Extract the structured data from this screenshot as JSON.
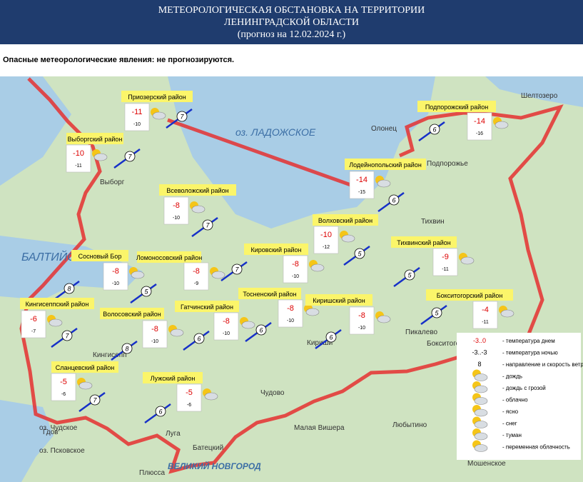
{
  "header": {
    "lines": [
      "МЕТЕОРОЛОГИЧЕСКАЯ ОБСТАНОВКА НА ТЕРРИТОРИИ",
      "ЛЕНИНГРАДСКОЙ ОБЛАСТИ",
      "(прогноз на 12.02.2024 г.)"
    ]
  },
  "notice": "Опасные метеорологические явления: не прогнозируются.",
  "districts": [
    {
      "name": "Приозерский район",
      "day": -11,
      "night": -10,
      "wind": 7
    },
    {
      "name": "Выборгский район",
      "day": -10,
      "night": -11,
      "wind": 7
    },
    {
      "name": "Всеволожский район",
      "day": -8,
      "night": -10,
      "wind": 7
    },
    {
      "name": "Сосновый Бор",
      "day": -8,
      "night": -10,
      "wind": 8
    },
    {
      "name": "Ломоносовский район",
      "day": -8,
      "night": -9,
      "wind": 5
    },
    {
      "name": "Кировский район",
      "day": -8,
      "night": -10,
      "wind": 7
    },
    {
      "name": "Кингисеппский район",
      "day": -6,
      "night": -7,
      "wind": 7
    },
    {
      "name": "Волосовский район",
      "day": -8,
      "night": -10,
      "wind": 8
    },
    {
      "name": "Гатчинский район",
      "day": -8,
      "night": -10,
      "wind": 6
    },
    {
      "name": "Тосненский район",
      "day": -8,
      "night": -10,
      "wind": 6
    },
    {
      "name": "Киришский район",
      "day": -8,
      "night": -10,
      "wind": 6
    },
    {
      "name": "Сланцевский район",
      "day": -5,
      "night": -6,
      "wind": 7
    },
    {
      "name": "Лужский район",
      "day": -5,
      "night": -6,
      "wind": 6
    },
    {
      "name": "Подпорожский район",
      "day": -14,
      "night": -16,
      "wind": 6
    },
    {
      "name": "Лодейнопольский район",
      "day": -14,
      "night": -15,
      "wind": 6
    },
    {
      "name": "Волховский район",
      "day": -10,
      "night": -12,
      "wind": 5
    },
    {
      "name": "Тихвинский район",
      "day": -9,
      "night": -11,
      "wind": 5
    },
    {
      "name": "Бокситогорский район",
      "day": -4,
      "night": -11,
      "wind": 5
    }
  ],
  "legend": [
    {
      "sample": "-3..0",
      "label": "- температура днем"
    },
    {
      "sample": "-3..-3",
      "label": "- температура ночью"
    },
    {
      "sample": "8",
      "label": "- направление и скорость ветра"
    },
    {
      "label": "- дождь"
    },
    {
      "label": "- дождь с грозой"
    },
    {
      "label": "- облачно"
    },
    {
      "label": "- ясно"
    },
    {
      "label": "- снег"
    },
    {
      "label": "- туман"
    },
    {
      "label": "- переменная облачность"
    }
  ],
  "map_labels": [
    "оз. ЛАДОЖСКОЕ",
    "БАЛТИЙСКОЕ",
    "оз. Чудское",
    "оз. Псковское",
    "Выборг",
    "Олонец",
    "Шелтозеро",
    "Подпорожье",
    "Тихвин",
    "Пикалево",
    "Бокситогорск",
    "Кириши",
    "Кингисепп",
    "Гдов",
    "Луга",
    "Батецкий",
    "Чудово",
    "Малая Вишера",
    "Любытино",
    "Мошенское",
    "ВЕЛИКИЙ НОВГОРОД",
    "Плюсса"
  ]
}
